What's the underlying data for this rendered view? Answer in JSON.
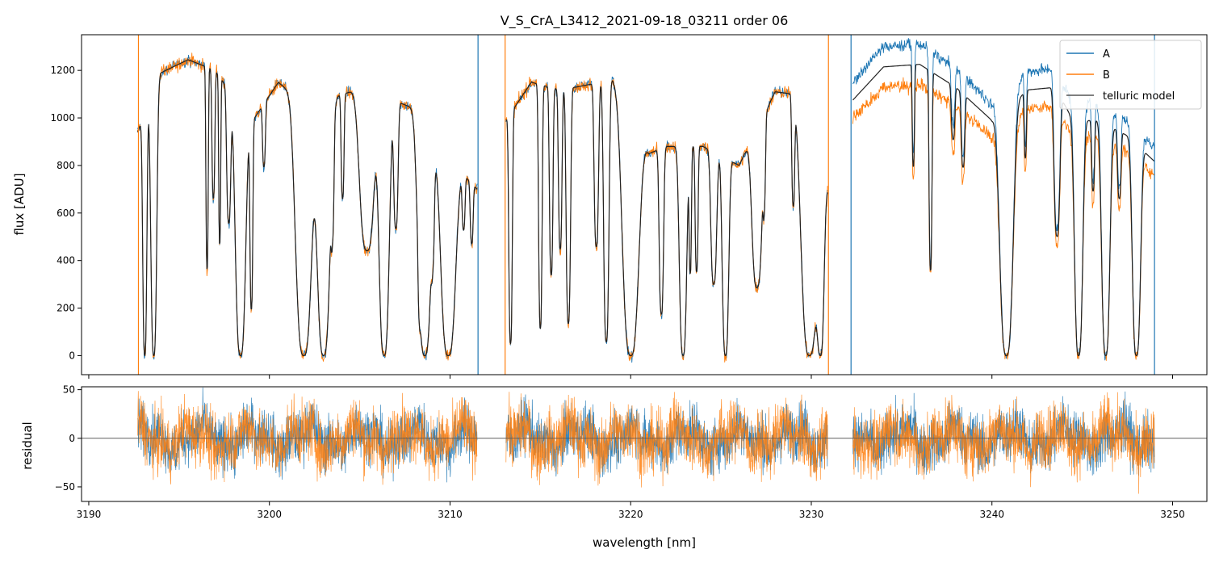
{
  "chart_data": [
    {
      "type": "line",
      "title": "V_S_CrA_L3412_2021-09-18_03211  order 06",
      "xlabel": "",
      "ylabel": "flux [ADU]",
      "xlim": [
        3189.6,
        3251.9
      ],
      "ylim": [
        -80,
        1350
      ],
      "xticks": [
        3190,
        3200,
        3210,
        3220,
        3230,
        3240,
        3250
      ],
      "yticks": [
        0,
        200,
        400,
        600,
        800,
        1000,
        1200
      ],
      "yticklabels": [
        "0",
        "200",
        "400",
        "600",
        "800",
        "1000",
        "1200"
      ],
      "grid": false,
      "legend": "top-right",
      "series": [
        {
          "name": "A",
          "color": "#1f77b4"
        },
        {
          "name": "B",
          "color": "#ff7f0e"
        },
        {
          "name": "telluric model",
          "color": "#555555"
        }
      ],
      "segments": [
        {
          "start": 3192.7,
          "end": 3211.5,
          "scaleA": 1.0,
          "scaleB": 1.0
        },
        {
          "start": 3213.1,
          "end": 3230.9,
          "scaleA": 1.0,
          "scaleB": 1.0
        },
        {
          "start": 3232.3,
          "end": 3249.0,
          "scaleA": 1.15,
          "scaleB": 1.0
        }
      ],
      "continuum": [
        [
          3192.7,
          940
        ],
        [
          3194.0,
          1190
        ],
        [
          3195.5,
          1245
        ],
        [
          3197.0,
          1200
        ],
        [
          3199.0,
          980
        ],
        [
          3200.5,
          1150
        ],
        [
          3202.0,
          1050
        ],
        [
          3204.5,
          1110
        ],
        [
          3206.0,
          1100
        ],
        [
          3208.0,
          1040
        ],
        [
          3210.0,
          820
        ],
        [
          3211.5,
          700
        ],
        [
          3213.1,
          990
        ],
        [
          3214.5,
          1150
        ],
        [
          3216.0,
          1120
        ],
        [
          3217.0,
          1130
        ],
        [
          3219.0,
          1160
        ],
        [
          3221.0,
          850
        ],
        [
          3222.0,
          880
        ],
        [
          3224.0,
          880
        ],
        [
          3226.0,
          800
        ],
        [
          3228.0,
          1110
        ],
        [
          3229.0,
          1100
        ],
        [
          3230.9,
          700
        ],
        [
          3232.3,
          1000
        ],
        [
          3234.0,
          1130
        ],
        [
          3236.0,
          1140
        ],
        [
          3238.0,
          1050
        ],
        [
          3240.0,
          920
        ],
        [
          3242.0,
          1040
        ],
        [
          3243.5,
          1050
        ],
        [
          3244.5,
          920
        ],
        [
          3246.0,
          920
        ],
        [
          3247.5,
          860
        ],
        [
          3249.0,
          760
        ]
      ],
      "absorption_bands": [
        [
          3193.1,
          0.14,
          1.0
        ],
        [
          3193.6,
          0.2,
          1.0
        ],
        [
          3196.55,
          0.08,
          0.7
        ],
        [
          3196.9,
          0.1,
          0.45
        ],
        [
          3197.25,
          0.07,
          0.6
        ],
        [
          3197.75,
          0.14,
          0.5
        ],
        [
          3198.4,
          0.35,
          1.0
        ],
        [
          3199.0,
          0.1,
          0.8
        ],
        [
          3199.7,
          0.1,
          0.25
        ],
        [
          3201.9,
          0.55,
          1.0
        ],
        [
          3203.0,
          0.45,
          1.0
        ],
        [
          3203.5,
          0.1,
          0.42
        ],
        [
          3204.05,
          0.1,
          0.4
        ],
        [
          3205.4,
          0.5,
          0.6
        ],
        [
          3206.35,
          0.35,
          1.0
        ],
        [
          3207.0,
          0.15,
          0.5
        ],
        [
          3208.6,
          0.45,
          1.0
        ],
        [
          3208.3,
          0.08,
          0.5
        ],
        [
          3209.05,
          0.1,
          0.4
        ],
        [
          3209.9,
          0.5,
          1.0
        ],
        [
          3210.75,
          0.1,
          0.3
        ],
        [
          3211.2,
          0.1,
          0.35
        ],
        [
          3213.35,
          0.12,
          0.95
        ],
        [
          3215.0,
          0.12,
          0.9
        ],
        [
          3215.6,
          0.12,
          0.7
        ],
        [
          3216.1,
          0.12,
          0.6
        ],
        [
          3216.55,
          0.15,
          0.88
        ],
        [
          3218.1,
          0.15,
          0.6
        ],
        [
          3218.65,
          0.18,
          0.95
        ],
        [
          3220.0,
          0.55,
          1.0
        ],
        [
          3221.7,
          0.15,
          0.8
        ],
        [
          3222.9,
          0.25,
          1.0
        ],
        [
          3223.3,
          0.08,
          0.6
        ],
        [
          3223.65,
          0.1,
          0.6
        ],
        [
          3224.6,
          0.2,
          0.65
        ],
        [
          3225.25,
          0.22,
          1.0
        ],
        [
          3227.0,
          0.35,
          0.7
        ],
        [
          3227.4,
          0.08,
          0.3
        ],
        [
          3229.0,
          0.1,
          0.42
        ],
        [
          3229.9,
          0.55,
          1.0
        ],
        [
          3230.5,
          0.25,
          1.0
        ],
        [
          3235.65,
          0.08,
          0.35
        ],
        [
          3236.6,
          0.1,
          0.7
        ],
        [
          3237.85,
          0.12,
          0.2
        ],
        [
          3238.4,
          0.12,
          0.28
        ],
        [
          3240.8,
          0.45,
          1.0
        ],
        [
          3241.85,
          0.08,
          0.25
        ],
        [
          3243.6,
          0.2,
          0.55
        ],
        [
          3244.8,
          0.28,
          1.0
        ],
        [
          3245.6,
          0.1,
          0.3
        ],
        [
          3246.3,
          0.28,
          1.0
        ],
        [
          3247.05,
          0.12,
          0.3
        ],
        [
          3248.0,
          0.28,
          1.0
        ]
      ],
      "spikes": [
        {
          "x": 3192.75,
          "color": "#ff7f0e",
          "y0": -80,
          "y1": 1350
        },
        {
          "x": 3211.55,
          "color": "#1f77b4",
          "y0": -80,
          "y1": 1350
        },
        {
          "x": 3213.05,
          "color": "#ff7f0e",
          "y0": -80,
          "y1": 1350
        },
        {
          "x": 3230.95,
          "color": "#ff7f0e",
          "y0": -80,
          "y1": 1350
        },
        {
          "x": 3232.2,
          "color": "#1f77b4",
          "y0": -80,
          "y1": 1350
        },
        {
          "x": 3249.0,
          "color": "#1f77b4",
          "y0": -80,
          "y1": 1350
        }
      ]
    },
    {
      "type": "line",
      "title": "",
      "xlabel": "wavelength [nm]",
      "ylabel": "residual",
      "xlim": [
        3189.6,
        3251.9
      ],
      "ylim": [
        -65,
        53
      ],
      "xticks": [
        3190,
        3200,
        3210,
        3220,
        3230,
        3240,
        3250
      ],
      "xticklabels": [
        "3190",
        "3200",
        "3210",
        "3220",
        "3230",
        "3240",
        "3250"
      ],
      "yticks": [
        -50,
        0,
        50
      ],
      "yticklabels": [
        "−50",
        "0",
        "50"
      ],
      "grid": false,
      "zero_line": 0,
      "series": [
        {
          "name": "A",
          "color": "#1f77b4",
          "noise": 14
        },
        {
          "name": "B",
          "color": "#ff7f0e",
          "noise": 16
        }
      ]
    }
  ]
}
